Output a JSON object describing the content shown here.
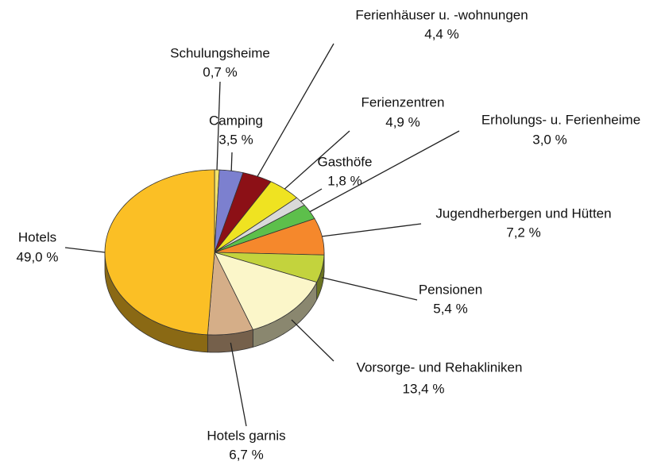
{
  "chart_data": {
    "type": "pie",
    "categories": [
      "Schulungsheime",
      "Camping",
      "Ferienhäuser u. -wohnungen",
      "Ferienzentren",
      "Gasthöfe",
      "Erholungs- u. Ferienheime",
      "Jugendherbergen und Hütten",
      "Pensionen",
      "Vorsorge- und Rehakliniken",
      "Hotels garnis",
      "Hotels"
    ],
    "values": [
      0.7,
      3.5,
      4.4,
      4.9,
      1.8,
      3.0,
      7.2,
      5.4,
      13.4,
      6.7,
      49.0
    ],
    "value_labels": [
      "0,7 %",
      "3,5 %",
      "4,4 %",
      "4,9 %",
      "1,8 %",
      "3,0 %",
      "7,2 %",
      "5,4 %",
      "13,4 %",
      "6,7 %",
      "49,0 %"
    ],
    "colors": [
      "#f3e36a",
      "#7c80cf",
      "#8c1016",
      "#efe321",
      "#d9d9d9",
      "#5dbf4b",
      "#f5882c",
      "#c3d33d",
      "#fbf6c9",
      "#d5ae88",
      "#fbbf25"
    ]
  }
}
